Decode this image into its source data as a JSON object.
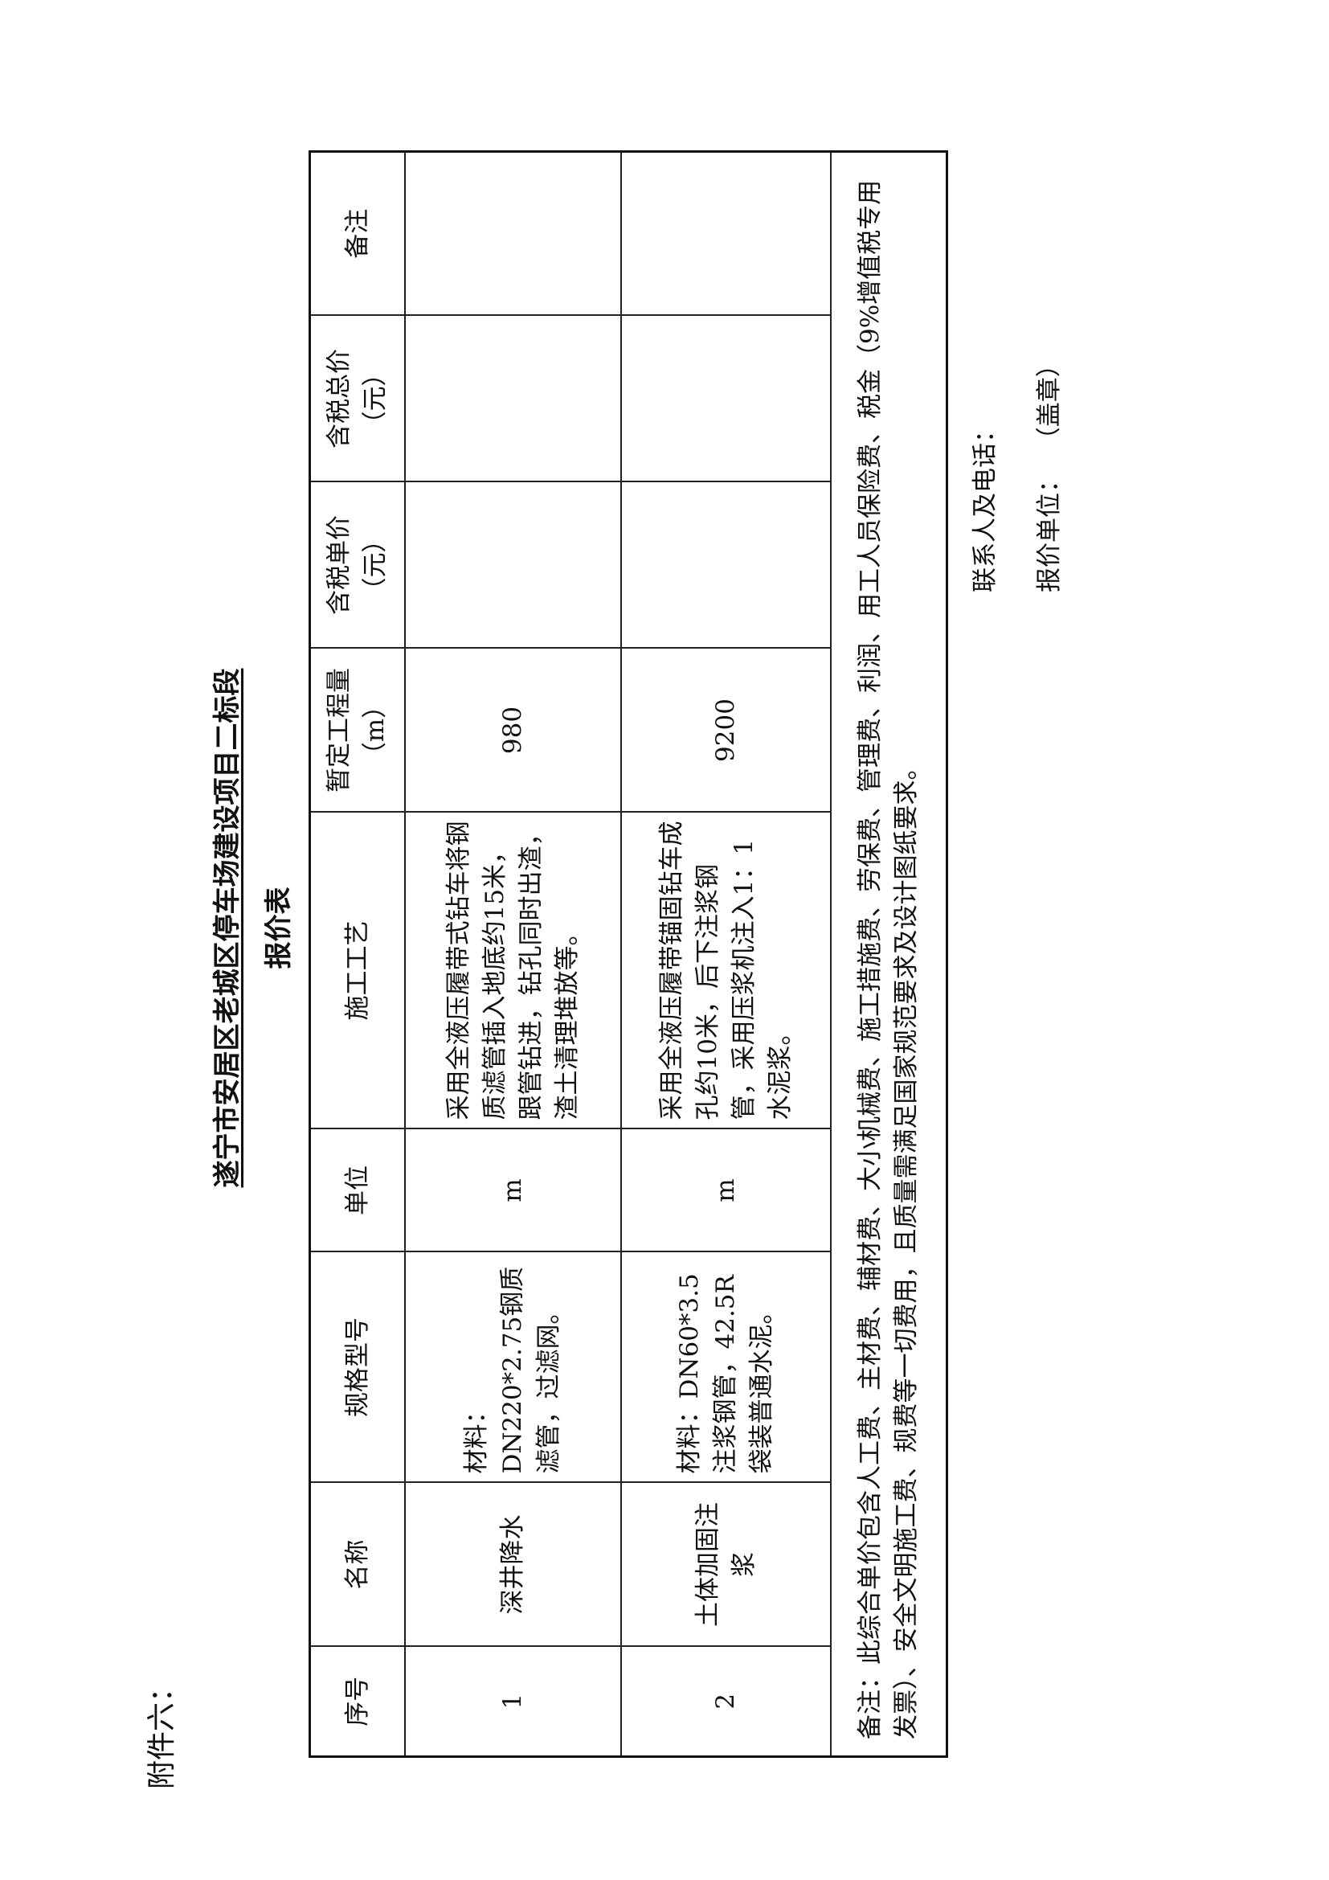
{
  "attachment_label": "附件六：",
  "title": "遂宁市安居区老城区停车场建设项目二标段",
  "subtitle": "报价表",
  "table": {
    "headers": [
      "序号",
      "名称",
      "规格型号",
      "单位",
      "施工工艺",
      "暂定工程量（m）",
      "含税单价（元）",
      "含税总价（元）",
      "备注"
    ],
    "rows": [
      {
        "no": "1",
        "name": "深井降水",
        "spec": "材料：DN220*2.75钢质滤管，过滤网。",
        "unit": "m",
        "process": "采用全液压履带式钻车将钢质滤管插入地底约15米，跟管钻进，钻孔同时出渣，渣土清理堆放等。",
        "quantity": "980",
        "unit_price": "",
        "total_price": "",
        "remark": ""
      },
      {
        "no": "2",
        "name": "土体加固注浆",
        "spec": "材料：DN60*3.5注浆钢管，42.5R袋装普通水泥。",
        "unit": "m",
        "process": "采用全液压履带锚固钻车成孔约10米，后下注浆钢管，采用压浆机注入1：1水泥浆。",
        "quantity": "9200",
        "unit_price": "",
        "total_price": "",
        "remark": ""
      }
    ],
    "note": "备注：此综合单价包含人工费、主材费、辅材费、大小机械费、施工措施费、劳保费、管理费、利润、用工人员保险费、税金（9%增值税专用发票）、安全文明施工费、规费等一切费用，且质量需满足国家规范要求及设计图纸要求。"
  },
  "footer": {
    "contact_label": "联系人及电话：",
    "unit_label": "报价单位：",
    "seal_label": "（盖章）"
  }
}
